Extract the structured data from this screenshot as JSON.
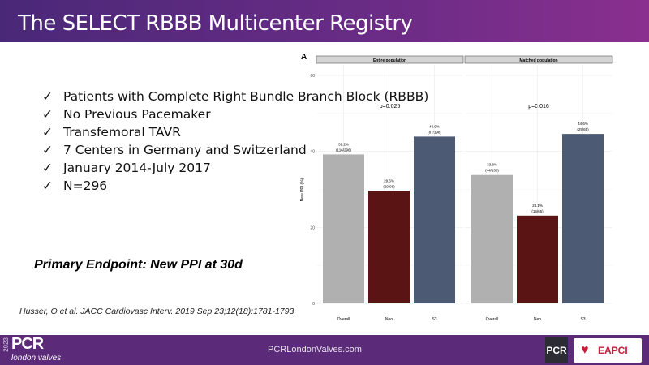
{
  "title": "The SELECT RBBB Multicenter Registry",
  "bullets": [
    "Patients with Complete Right Bundle Branch Block (RBBB)",
    "No Previous Pacemaker",
    "Transfemoral TAVR",
    "7 Centers in Germany and Switzerland",
    "January 2014-July 2017",
    "N=296"
  ],
  "check_icon": "✓",
  "endpoint": "Primary Endpoint: New PPI at 30d",
  "reference": "Husser, O et al. JACC Cardiovasc Interv. 2019 Sep 23;12(18):1781-1793",
  "footer": {
    "year": "2023",
    "logo": "PCR",
    "logo_sub": "london valves",
    "site": "PCRLondonValves.com",
    "pcr_badge": "PCR",
    "eapci": "EAPCI"
  },
  "colors": {
    "header": "#5b2a78",
    "Overall": "#b0b0b0",
    "Neo": "#5a1414",
    "S3": "#4c5a74"
  },
  "chart_data": {
    "type": "bar",
    "panel_label": "A",
    "ylabel": "New PPI (%)",
    "ylim": [
      0,
      60
    ],
    "yticks": [
      0,
      20,
      40,
      60
    ],
    "grid": true,
    "categories": [
      "Overall",
      "Neo",
      "S3"
    ],
    "panels": [
      {
        "name": "Entire population",
        "p_value": "p=0.025",
        "values": [
          39.2,
          29.6,
          43.9
        ],
        "labels": [
          "39.2%",
          "29.6%",
          "43.9%"
        ],
        "counts": [
          "(116/296)",
          "(29/98)",
          "(87/198)"
        ]
      },
      {
        "name": "Matched population",
        "p_value": "p=0.016",
        "values": [
          33.8,
          23.1,
          44.6
        ],
        "labels": [
          "33.8%",
          "23.1%",
          "44.6%"
        ],
        "counts": [
          "(44/130)",
          "(15/65)",
          "(29/65)"
        ]
      }
    ]
  }
}
